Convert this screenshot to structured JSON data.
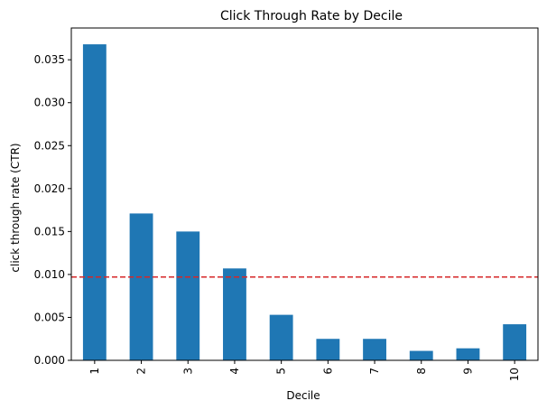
{
  "chart_data": {
    "type": "bar",
    "title": "Click Through Rate by Decile",
    "xlabel": "Decile",
    "ylabel": "click through rate (CTR)",
    "categories": [
      "1",
      "2",
      "3",
      "4",
      "5",
      "6",
      "7",
      "8",
      "9",
      "10"
    ],
    "values": [
      0.0368,
      0.0171,
      0.015,
      0.0107,
      0.0053,
      0.0025,
      0.0025,
      0.0011,
      0.0014,
      0.0042
    ],
    "ylim": [
      0,
      0.0387
    ],
    "yticks": [
      "0.000",
      "0.005",
      "0.010",
      "0.015",
      "0.020",
      "0.025",
      "0.030",
      "0.035"
    ],
    "ytick_values": [
      0,
      0.005,
      0.01,
      0.015,
      0.02,
      0.025,
      0.03,
      0.035
    ],
    "reference_line": {
      "y": 0.0097,
      "style": "dashed",
      "color": "#d62728"
    },
    "bar_color": "#1f77b4",
    "grid": false,
    "x_tick_rotation": 90
  }
}
